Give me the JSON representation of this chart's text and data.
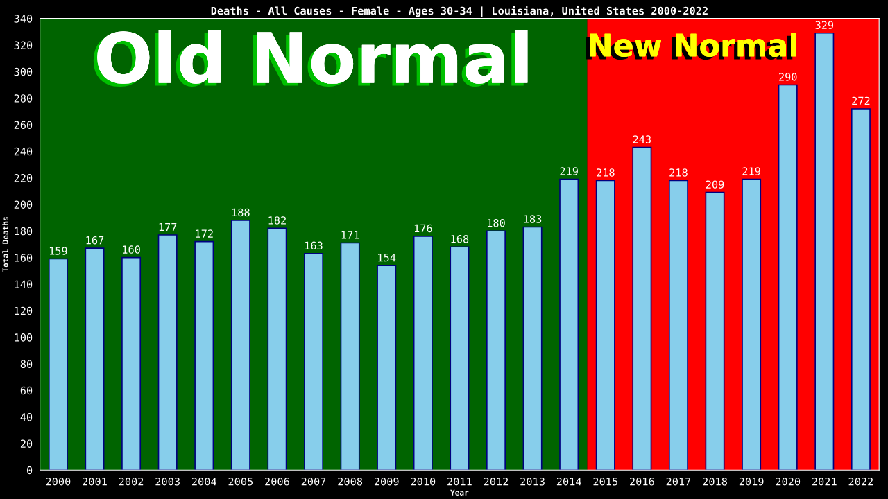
{
  "chart_data": {
    "type": "bar",
    "title": "Deaths - All Causes - Female - Ages 30-34 | Louisiana, United States 2000-2022",
    "xlabel": "Year",
    "ylabel": "Total Deaths",
    "categories": [
      "2000",
      "2001",
      "2002",
      "2003",
      "2004",
      "2005",
      "2006",
      "2007",
      "2008",
      "2009",
      "2010",
      "2011",
      "2012",
      "2013",
      "2014",
      "2015",
      "2016",
      "2017",
      "2018",
      "2019",
      "2020",
      "2021",
      "2022"
    ],
    "values": [
      159,
      167,
      160,
      177,
      172,
      188,
      182,
      163,
      171,
      154,
      176,
      168,
      180,
      183,
      219,
      218,
      243,
      218,
      209,
      219,
      290,
      329,
      272
    ],
    "color": "#87ceeb",
    "ylim": [
      0,
      340
    ],
    "yticks": [
      0,
      20,
      40,
      60,
      80,
      100,
      120,
      140,
      160,
      180,
      200,
      220,
      240,
      260,
      280,
      300,
      320,
      340
    ],
    "bands": [
      {
        "axis": "x",
        "from": "2000",
        "to": "2014",
        "label": "Old Normal",
        "color": "#006400"
      },
      {
        "axis": "x",
        "from": "2015",
        "to": "2022",
        "label": "New Normal",
        "color": "#ff0000"
      }
    ],
    "data_labels": true,
    "grid": false,
    "legend": false
  }
}
